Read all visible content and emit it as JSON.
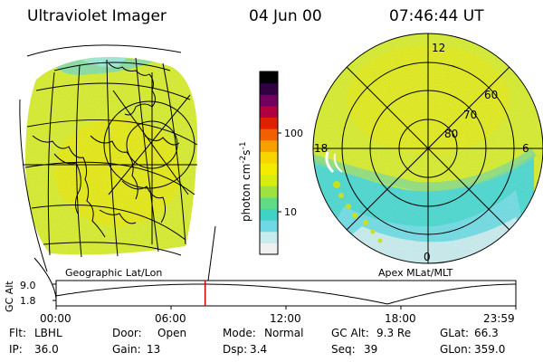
{
  "header": {
    "instrument": "Ultraviolet Imager",
    "date": "04 Jun 00",
    "time": "07:46:44 UT"
  },
  "left_panel": {
    "label": "Geographic Lat/Lon"
  },
  "right_panel": {
    "label": "Apex MLat/MLT",
    "mlt_labels": [
      "12",
      "18",
      "6",
      "0"
    ],
    "mlat_labels": [
      "60",
      "70",
      "80"
    ]
  },
  "colorbar": {
    "unit_main": "photon cm",
    "unit_sup1": "-2",
    "unit_s": "s",
    "unit_sup2": "-1",
    "ticks": [
      "100",
      "10"
    ],
    "colors": [
      "#f0f0f0",
      "#c8ecee",
      "#70d8e4",
      "#40d2c4",
      "#60dc88",
      "#a0e040",
      "#d8ec10",
      "#f4ec00",
      "#f8d400",
      "#f8a000",
      "#f06000",
      "#e02000",
      "#b00040",
      "#700060",
      "#300040",
      "#000000"
    ]
  },
  "orbit_plot": {
    "ylabel": "GC Alt",
    "yticks": [
      "9.0",
      "1.8"
    ],
    "xticks": [
      "00:00",
      "06:00",
      "12:00",
      "18:00",
      "23:59"
    ],
    "current_time_hours": 7.78
  },
  "footer": {
    "row1": [
      {
        "label": "Flt:",
        "value": "LBHL"
      },
      {
        "label": "Door:",
        "value": "Open"
      },
      {
        "label": "Mode:",
        "value": "Normal"
      },
      {
        "label": "GC Alt:",
        "value": "9.3 Re"
      },
      {
        "label": "GLat:",
        "value": "66.3"
      }
    ],
    "row2": [
      {
        "label": "IP:",
        "value": "36.0"
      },
      {
        "label": "Gain:",
        "value": "13"
      },
      {
        "label": "Dsp:",
        "value": "3.4"
      },
      {
        "label": "Seq:",
        "value": "39"
      },
      {
        "label": "GLon:",
        "value": "359.0"
      }
    ]
  },
  "colors": {
    "image_fill": "#d6ec2c",
    "oval_fill": "#4ad8d0",
    "marker": "#d00000"
  }
}
